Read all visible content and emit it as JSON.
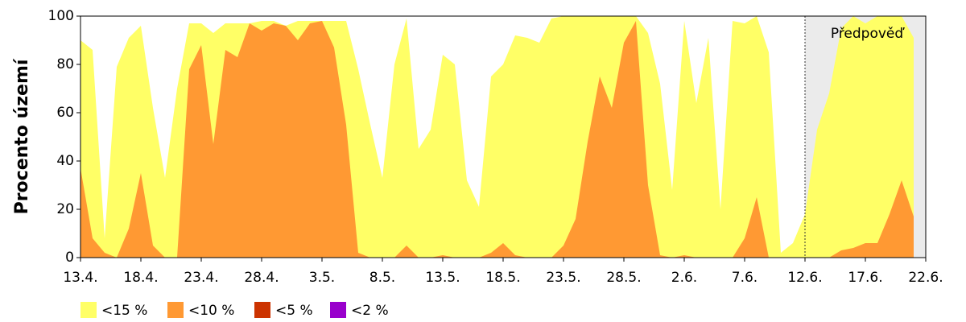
{
  "chart_data": {
    "type": "area",
    "y_label": "Procento území",
    "categories": [
      "13.4.",
      null,
      null,
      null,
      null,
      "18.4.",
      null,
      null,
      null,
      null,
      "23.4.",
      null,
      null,
      null,
      null,
      "28.4.",
      null,
      null,
      null,
      null,
      "3.5.",
      null,
      null,
      null,
      null,
      "8.5.",
      null,
      null,
      null,
      null,
      "13.5.",
      null,
      null,
      null,
      null,
      "18.5.",
      null,
      null,
      null,
      null,
      "23.5.",
      null,
      null,
      null,
      null,
      "28.5.",
      null,
      null,
      null,
      null,
      "2.6.",
      null,
      null,
      null,
      null,
      "7.6.",
      null,
      null,
      null,
      null,
      "12.6.",
      null,
      null,
      null,
      null,
      "17.6.",
      null,
      null,
      null,
      null,
      "22.6."
    ],
    "series": [
      {
        "name": "<15 %",
        "color": "#ffff66",
        "values": [
          90,
          86,
          8,
          79,
          91,
          96,
          62,
          33,
          70,
          97,
          97,
          93,
          97,
          97,
          97,
          98,
          98,
          96,
          98,
          98,
          98,
          98,
          98,
          78,
          55,
          33,
          80,
          99,
          45,
          53,
          84,
          80,
          32,
          21,
          75,
          80,
          92,
          91,
          89,
          99,
          100,
          100,
          100,
          100,
          100,
          100,
          100,
          93,
          72,
          28,
          98,
          64,
          91,
          20,
          98,
          97,
          100,
          85,
          2,
          6,
          18,
          53,
          68,
          95,
          100,
          97,
          100,
          100,
          100,
          91,
          null
        ]
      },
      {
        "name": "<10 %",
        "color": "#ff9933",
        "values": [
          37,
          8,
          2,
          0,
          12,
          35,
          5,
          0,
          0,
          78,
          88,
          47,
          86,
          83,
          97,
          94,
          97,
          96,
          90,
          97,
          98,
          87,
          55,
          2,
          0,
          0,
          0,
          5,
          0,
          0,
          1,
          0,
          0,
          0,
          2,
          6,
          1,
          0,
          0,
          0,
          5,
          16,
          48,
          75,
          62,
          89,
          98,
          30,
          1,
          0,
          1,
          0,
          0,
          0,
          0,
          8,
          25,
          0,
          0,
          0,
          0,
          0,
          0,
          3,
          4,
          6,
          6,
          18,
          32,
          17,
          null
        ]
      },
      {
        "name": "<5 %",
        "color": "#cc3300",
        "values": [
          0,
          0,
          0,
          0,
          0,
          0,
          0,
          0,
          0,
          0,
          0,
          0,
          0,
          0,
          0,
          0,
          0,
          0,
          0,
          0,
          0,
          0,
          0,
          0,
          0,
          0,
          0,
          0,
          0,
          0,
          0,
          0,
          0,
          0,
          0,
          0,
          0,
          0,
          0,
          0,
          0,
          0,
          0,
          0,
          0,
          0,
          0,
          0,
          0,
          0,
          0,
          0,
          0,
          0,
          0,
          0,
          0,
          0,
          0,
          0,
          0,
          0,
          0,
          0,
          0,
          0,
          0,
          0,
          0,
          0,
          null
        ]
      },
      {
        "name": "<2 %",
        "color": "#9900cc",
        "values": [
          0,
          0,
          0,
          0,
          0,
          0,
          0,
          0,
          0,
          0,
          0,
          0,
          0,
          0,
          0,
          0,
          0,
          0,
          0,
          0,
          0,
          0,
          0,
          0,
          0,
          0,
          0,
          0,
          0,
          0,
          0,
          0,
          0,
          0,
          0,
          0,
          0,
          0,
          0,
          0,
          0,
          0,
          0,
          0,
          0,
          0,
          0,
          0,
          0,
          0,
          0,
          0,
          0,
          0,
          0,
          0,
          0,
          0,
          0,
          0,
          0,
          0,
          0,
          0,
          0,
          0,
          0,
          0,
          0,
          0,
          null
        ]
      }
    ],
    "ylim": [
      0,
      100
    ],
    "yticks": [
      0,
      20,
      40,
      60,
      80,
      100
    ],
    "grid": false,
    "forecast": {
      "label": "Předpověď",
      "start": "12.6."
    }
  }
}
